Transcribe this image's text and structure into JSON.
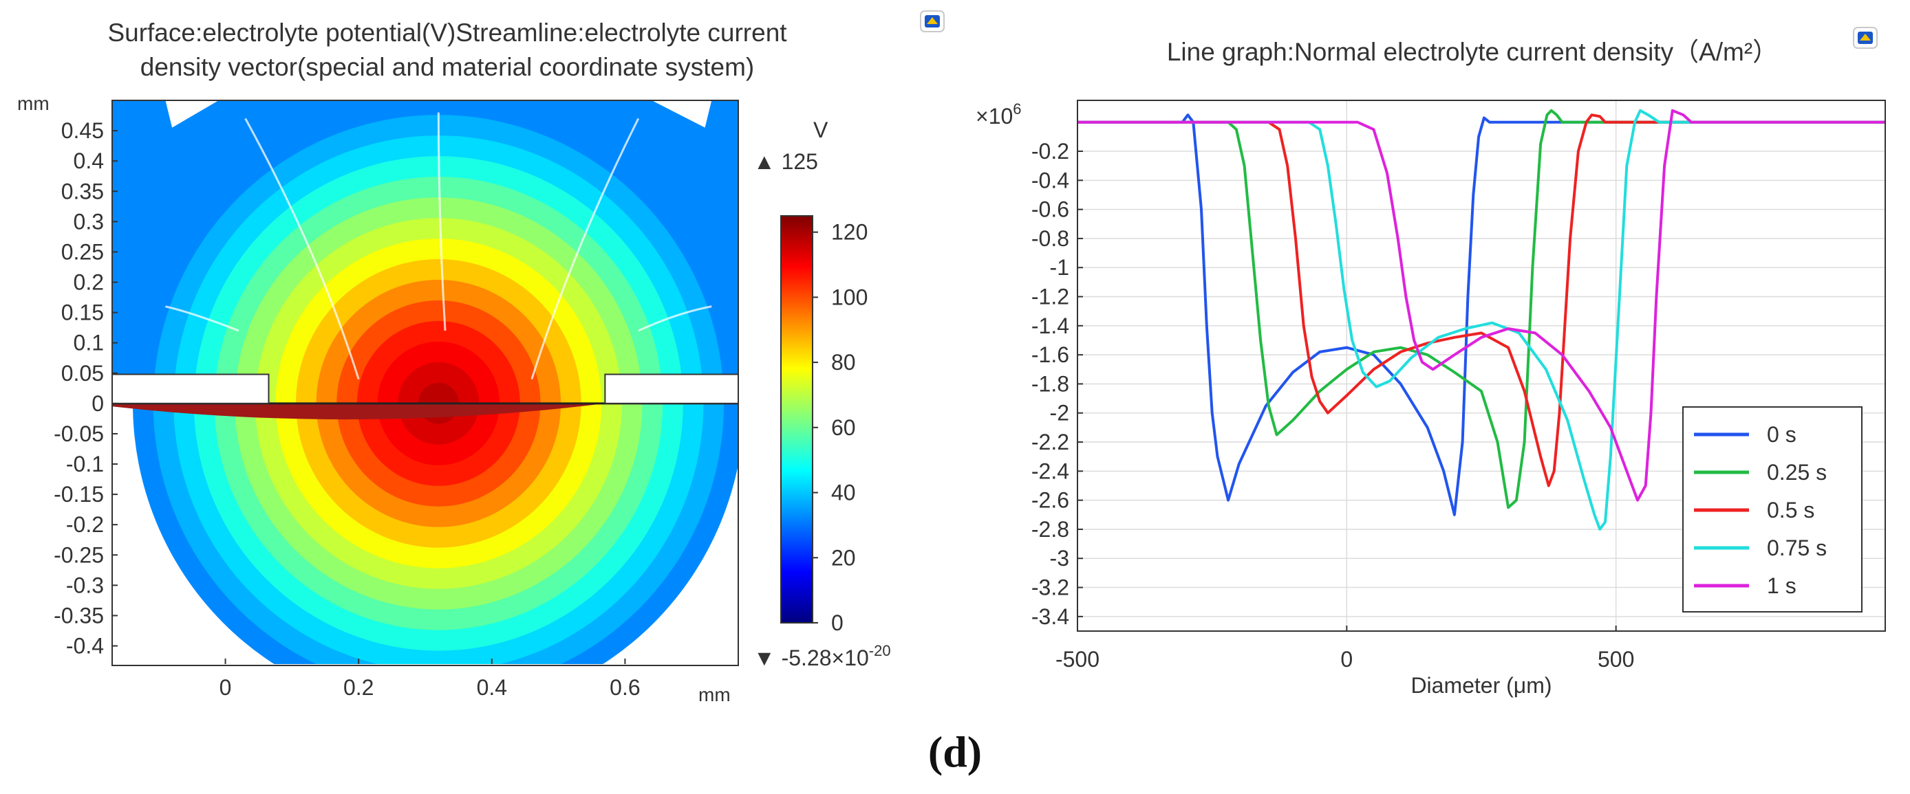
{
  "colors": {
    "blue": "#2255ee",
    "green": "#22bb44",
    "red": "#ee2222",
    "cyan": "#22dddd",
    "magenta": "#dd22dd",
    "colormap": [
      "#00007f",
      "#0000ff",
      "#007fff",
      "#00ffff",
      "#7fff7f",
      "#ffff00",
      "#ff7f00",
      "#ff0000",
      "#7f0000"
    ]
  },
  "icons": [
    "comsol-logo-icon",
    "comsol-logo-icon"
  ],
  "panel_label": "(d)",
  "chart_data": [
    {
      "type": "heatmap",
      "title": "Surface:electrolyte potential(V)Streamline:electrolyte current\ndensity vector(special and material coordinate system)",
      "title_lines": [
        "Surface:electrolyte potential(V)Streamline:electrolyte current",
        "density vector(special and material coordinate system)"
      ],
      "xlabel": "mm",
      "ylabel": "mm",
      "xlim": [
        -0.17,
        0.77
      ],
      "ylim": [
        -0.43,
        0.5
      ],
      "xticks": [
        "0",
        "0.2",
        "0.4",
        "0.6"
      ],
      "xtick_values": [
        0,
        0.2,
        0.4,
        0.6
      ],
      "yticks": [
        "0.45",
        "0.4",
        "0.35",
        "0.3",
        "0.25",
        "0.2",
        "0.15",
        "0.1",
        "0.05",
        "0",
        "-0.05",
        "-0.1",
        "-0.15",
        "-0.2",
        "-0.25",
        "-0.3",
        "-0.35",
        "-0.4"
      ],
      "ytick_values": [
        0.45,
        0.4,
        0.35,
        0.3,
        0.25,
        0.2,
        0.15,
        0.1,
        0.05,
        0,
        -0.05,
        -0.1,
        -0.15,
        -0.2,
        -0.25,
        -0.3,
        -0.35,
        -0.4
      ],
      "colorbar": {
        "unit": "V",
        "max_label": "▲ 125",
        "min_label": "▼ -5.28×10",
        "min_exp": "-20",
        "range": [
          0,
          125
        ],
        "ticks": [
          "120",
          "100",
          "80",
          "60",
          "40",
          "20",
          "0"
        ],
        "tick_values": [
          120,
          100,
          80,
          60,
          40,
          20,
          0
        ]
      },
      "potential_center": [
        0.32,
        0.0
      ],
      "potential_max": 125
    },
    {
      "type": "line",
      "title": "Line graph:Normal electrolyte current density（A/m²）",
      "xlabel": "Diameter (μm)",
      "ylabel": "",
      "y_multiplier": "×10",
      "y_multiplier_exp": "6",
      "xlim": [
        -500,
        1000
      ],
      "ylim": [
        -3.5,
        0.15
      ],
      "xticks": [
        "-500",
        "0",
        "500"
      ],
      "xtick_values": [
        -500,
        0,
        500
      ],
      "yticks": [
        "-0.2",
        "-0.4",
        "-0.6",
        "-0.8",
        "-1",
        "-1.2",
        "-1.4",
        "-1.6",
        "-1.8",
        "-2",
        "-2.2",
        "-2.4",
        "-2.6",
        "-2.8",
        "-3",
        "-3.2",
        "-3.4"
      ],
      "ytick_values": [
        -0.2,
        -0.4,
        -0.6,
        -0.8,
        -1,
        -1.2,
        -1.4,
        -1.6,
        -1.8,
        -2,
        -2.2,
        -2.4,
        -2.6,
        -2.8,
        -3,
        -3.2,
        -3.4
      ],
      "grid": true,
      "legend_position": "bottom-right",
      "series": [
        {
          "name": "0 s",
          "color": "#2255ee",
          "x": [
            -500,
            -305,
            -295,
            -285,
            -270,
            -260,
            -250,
            -240,
            -230,
            -220,
            -200,
            -150,
            -100,
            -50,
            0,
            50,
            100,
            150,
            180,
            200,
            215,
            225,
            235,
            245,
            255,
            265,
            280,
            300,
            1000
          ],
          "y": [
            0,
            0,
            0.05,
            0,
            -0.6,
            -1.4,
            -2.0,
            -2.3,
            -2.45,
            -2.6,
            -2.35,
            -1.95,
            -1.72,
            -1.58,
            -1.55,
            -1.6,
            -1.8,
            -2.1,
            -2.4,
            -2.7,
            -2.2,
            -1.2,
            -0.5,
            -0.1,
            0.03,
            0,
            0,
            0,
            0
          ]
        },
        {
          "name": "0.25 s",
          "color": "#22bb44",
          "x": [
            -500,
            -220,
            -205,
            -190,
            -175,
            -160,
            -145,
            -130,
            -100,
            -50,
            0,
            50,
            100,
            150,
            200,
            250,
            280,
            300,
            315,
            330,
            345,
            360,
            372,
            380,
            390,
            400,
            1000
          ],
          "y": [
            0,
            0,
            -0.05,
            -0.3,
            -0.9,
            -1.5,
            -1.95,
            -2.15,
            -2.05,
            -1.85,
            -1.7,
            -1.58,
            -1.55,
            -1.6,
            -1.72,
            -1.85,
            -2.2,
            -2.65,
            -2.6,
            -2.2,
            -1.0,
            -0.15,
            0.05,
            0.08,
            0.05,
            0,
            0
          ]
        },
        {
          "name": "0.5 s",
          "color": "#ee2222",
          "x": [
            -500,
            -145,
            -125,
            -110,
            -95,
            -80,
            -65,
            -50,
            -35,
            0,
            50,
            100,
            150,
            200,
            250,
            300,
            330,
            360,
            375,
            385,
            395,
            405,
            415,
            430,
            445,
            455,
            470,
            480,
            1000
          ],
          "y": [
            0,
            0,
            -0.05,
            -0.3,
            -0.8,
            -1.4,
            -1.75,
            -1.92,
            -2.0,
            -1.88,
            -1.7,
            -1.58,
            -1.52,
            -1.48,
            -1.45,
            -1.55,
            -1.85,
            -2.3,
            -2.5,
            -2.4,
            -2.0,
            -1.4,
            -0.8,
            -0.2,
            0,
            0.05,
            0.04,
            0,
            0
          ]
        },
        {
          "name": "0.75 s",
          "color": "#22dddd",
          "x": [
            -500,
            -70,
            -50,
            -35,
            -20,
            -5,
            10,
            30,
            55,
            80,
            120,
            170,
            220,
            270,
            320,
            370,
            410,
            440,
            460,
            470,
            480,
            490,
            505,
            520,
            535,
            545,
            560,
            580,
            1000
          ],
          "y": [
            0,
            0,
            -0.05,
            -0.3,
            -0.7,
            -1.15,
            -1.5,
            -1.72,
            -1.82,
            -1.78,
            -1.62,
            -1.48,
            -1.42,
            -1.38,
            -1.45,
            -1.7,
            -2.05,
            -2.45,
            -2.7,
            -2.8,
            -2.75,
            -2.3,
            -1.3,
            -0.3,
            0,
            0.08,
            0.05,
            0,
            0
          ]
        },
        {
          "name": "1 s",
          "color": "#dd22dd",
          "x": [
            -500,
            20,
            50,
            75,
            95,
            110,
            125,
            140,
            160,
            200,
            250,
            300,
            350,
            400,
            450,
            490,
            520,
            540,
            555,
            565,
            575,
            590,
            605,
            625,
            640,
            1000
          ],
          "y": [
            0,
            0,
            -0.05,
            -0.35,
            -0.8,
            -1.2,
            -1.5,
            -1.65,
            -1.7,
            -1.6,
            -1.48,
            -1.42,
            -1.45,
            -1.6,
            -1.85,
            -2.1,
            -2.4,
            -2.6,
            -2.5,
            -2.0,
            -1.2,
            -0.3,
            0.08,
            0.05,
            0,
            0
          ]
        }
      ]
    }
  ]
}
